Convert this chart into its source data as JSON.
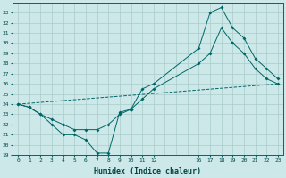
{
  "xlabel": "Humidex (Indice chaleur)",
  "background_color": "#cce8e8",
  "grid_color": "#aacccc",
  "line_color": "#006666",
  "xlim": [
    -0.5,
    23.5
  ],
  "ylim": [
    19,
    34
  ],
  "yticks": [
    19,
    20,
    21,
    22,
    23,
    24,
    25,
    26,
    27,
    28,
    29,
    30,
    31,
    32,
    33
  ],
  "xtick_labels": [
    "0",
    "1",
    "2",
    "3",
    "4",
    "5",
    "6",
    "7",
    "8",
    "9",
    "1011",
    "12",
    "",
    "161718",
    "192021",
    "2223"
  ],
  "xtick_positions": [
    0,
    1,
    2,
    3,
    4,
    5,
    6,
    7,
    8,
    9,
    10,
    12,
    14,
    17,
    20,
    22
  ],
  "grid_x": [
    0,
    1,
    2,
    3,
    4,
    5,
    6,
    7,
    8,
    9,
    10,
    11,
    12,
    13,
    14,
    15,
    16,
    17,
    18,
    19,
    20,
    21,
    22,
    23
  ],
  "line1_x": [
    0,
    1,
    2,
    3,
    4,
    5,
    6,
    7,
    8,
    9,
    10,
    11,
    12,
    16,
    17,
    18,
    19,
    20,
    21,
    22,
    23
  ],
  "line1_y": [
    24.0,
    23.7,
    23.0,
    22.0,
    21.0,
    21.0,
    20.5,
    19.2,
    19.2,
    23.2,
    23.5,
    25.5,
    26.0,
    29.5,
    33.0,
    33.5,
    31.5,
    30.5,
    28.5,
    27.5,
    26.5
  ],
  "line2_x": [
    0,
    1,
    2,
    3,
    4,
    5,
    6,
    7,
    8,
    9,
    10,
    11,
    12,
    16,
    17,
    18,
    19,
    20,
    21,
    22,
    23
  ],
  "line2_y": [
    24.0,
    23.7,
    23.0,
    22.5,
    22.0,
    21.5,
    21.5,
    21.5,
    22.0,
    23.0,
    23.5,
    24.5,
    25.5,
    28.0,
    29.0,
    31.5,
    30.0,
    29.0,
    27.5,
    26.5,
    26.0
  ],
  "line3_x": [
    0,
    23
  ],
  "line3_y": [
    24.0,
    26.0
  ]
}
